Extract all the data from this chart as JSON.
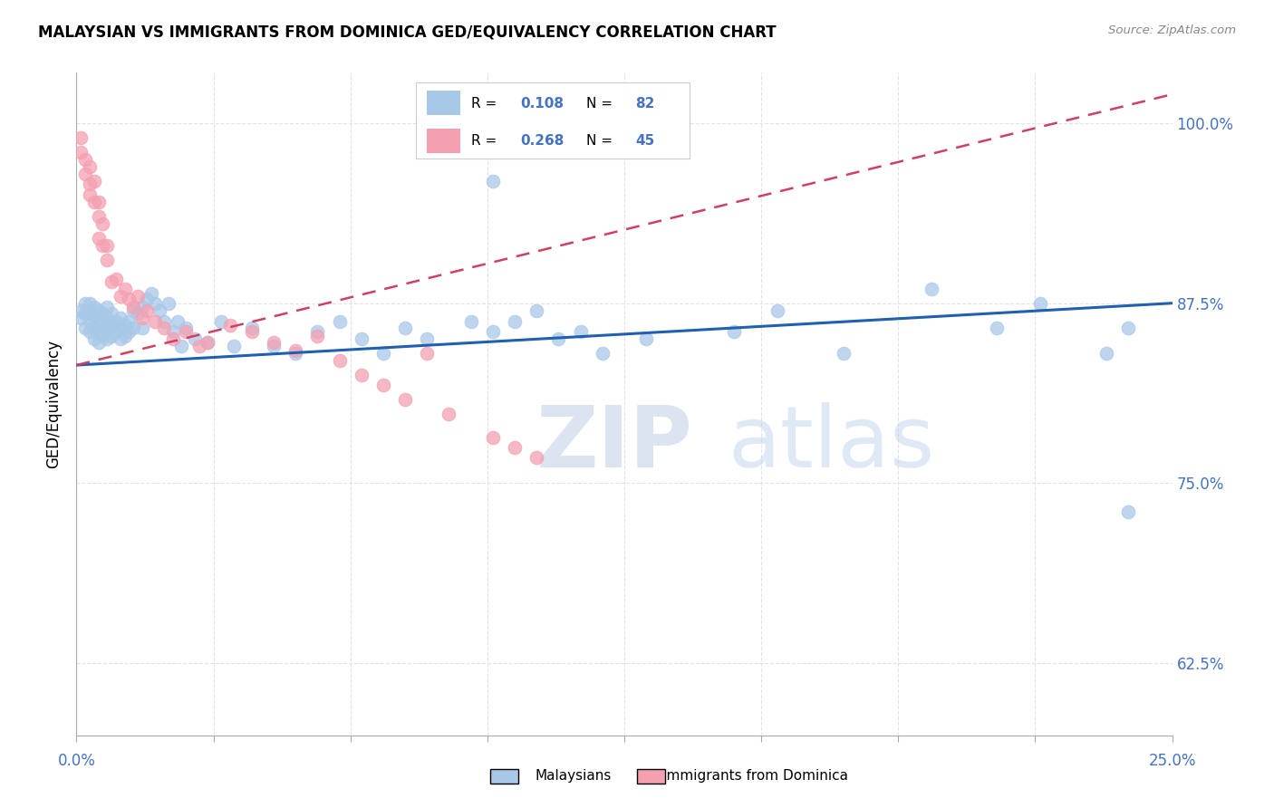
{
  "title": "MALAYSIAN VS IMMIGRANTS FROM DOMINICA GED/EQUIVALENCY CORRELATION CHART",
  "source": "Source: ZipAtlas.com",
  "ylabel": "GED/Equivalency",
  "xlim": [
    0.0,
    0.25
  ],
  "ylim": [
    0.575,
    1.035
  ],
  "yticks": [
    0.625,
    0.75,
    0.875,
    1.0
  ],
  "ytick_labels": [
    "62.5%",
    "75.0%",
    "87.5%",
    "100.0%"
  ],
  "legend_r1": "R = 0.108",
  "legend_n1": "N = 82",
  "legend_r2": "R = 0.268",
  "legend_n2": "N = 45",
  "blue_color": "#a8c8e8",
  "pink_color": "#f4a0b0",
  "trend_blue": "#2060b0",
  "trend_pink": "#d04060",
  "watermark_zip": "ZIP",
  "watermark_atlas": "atlas",
  "title_fontsize": 12,
  "axis_color": "#4472c4",
  "blue_points_x": [
    0.001,
    0.001,
    0.002,
    0.002,
    0.002,
    0.003,
    0.003,
    0.003,
    0.003,
    0.004,
    0.004,
    0.004,
    0.004,
    0.005,
    0.005,
    0.005,
    0.005,
    0.006,
    0.006,
    0.006,
    0.007,
    0.007,
    0.007,
    0.007,
    0.008,
    0.008,
    0.008,
    0.009,
    0.009,
    0.01,
    0.01,
    0.01,
    0.011,
    0.011,
    0.012,
    0.012,
    0.013,
    0.013,
    0.014,
    0.015,
    0.015,
    0.016,
    0.017,
    0.018,
    0.019,
    0.02,
    0.021,
    0.022,
    0.023,
    0.024,
    0.025,
    0.027,
    0.03,
    0.033,
    0.036,
    0.04,
    0.045,
    0.05,
    0.055,
    0.06,
    0.065,
    0.07,
    0.075,
    0.08,
    0.09,
    0.095,
    0.1,
    0.105,
    0.11,
    0.115,
    0.12,
    0.13,
    0.15,
    0.16,
    0.175,
    0.195,
    0.21,
    0.22,
    0.235,
    0.24,
    0.095,
    0.24
  ],
  "blue_points_y": [
    0.87,
    0.865,
    0.875,
    0.868,
    0.858,
    0.875,
    0.868,
    0.862,
    0.855,
    0.872,
    0.866,
    0.858,
    0.85,
    0.87,
    0.862,
    0.855,
    0.848,
    0.868,
    0.86,
    0.852,
    0.872,
    0.865,
    0.858,
    0.85,
    0.868,
    0.86,
    0.852,
    0.862,
    0.855,
    0.865,
    0.858,
    0.85,
    0.86,
    0.852,
    0.862,
    0.855,
    0.87,
    0.858,
    0.868,
    0.872,
    0.858,
    0.878,
    0.882,
    0.875,
    0.87,
    0.862,
    0.875,
    0.855,
    0.862,
    0.845,
    0.858,
    0.85,
    0.848,
    0.862,
    0.845,
    0.858,
    0.845,
    0.84,
    0.855,
    0.862,
    0.85,
    0.84,
    0.858,
    0.85,
    0.862,
    0.855,
    0.862,
    0.87,
    0.85,
    0.855,
    0.84,
    0.85,
    0.855,
    0.87,
    0.84,
    0.885,
    0.858,
    0.875,
    0.84,
    0.858,
    0.96,
    0.73
  ],
  "pink_points_x": [
    0.001,
    0.001,
    0.002,
    0.002,
    0.003,
    0.003,
    0.003,
    0.004,
    0.004,
    0.005,
    0.005,
    0.005,
    0.006,
    0.006,
    0.007,
    0.007,
    0.008,
    0.009,
    0.01,
    0.011,
    0.012,
    0.013,
    0.014,
    0.015,
    0.016,
    0.018,
    0.02,
    0.022,
    0.025,
    0.028,
    0.03,
    0.035,
    0.04,
    0.045,
    0.05,
    0.055,
    0.06,
    0.065,
    0.07,
    0.075,
    0.08,
    0.085,
    0.095,
    0.1,
    0.105
  ],
  "pink_points_y": [
    0.99,
    0.98,
    0.975,
    0.965,
    0.97,
    0.958,
    0.95,
    0.96,
    0.945,
    0.945,
    0.935,
    0.92,
    0.93,
    0.915,
    0.905,
    0.915,
    0.89,
    0.892,
    0.88,
    0.885,
    0.878,
    0.872,
    0.88,
    0.865,
    0.87,
    0.862,
    0.858,
    0.85,
    0.855,
    0.845,
    0.848,
    0.86,
    0.855,
    0.848,
    0.842,
    0.852,
    0.835,
    0.825,
    0.818,
    0.808,
    0.84,
    0.798,
    0.782,
    0.775,
    0.768
  ]
}
